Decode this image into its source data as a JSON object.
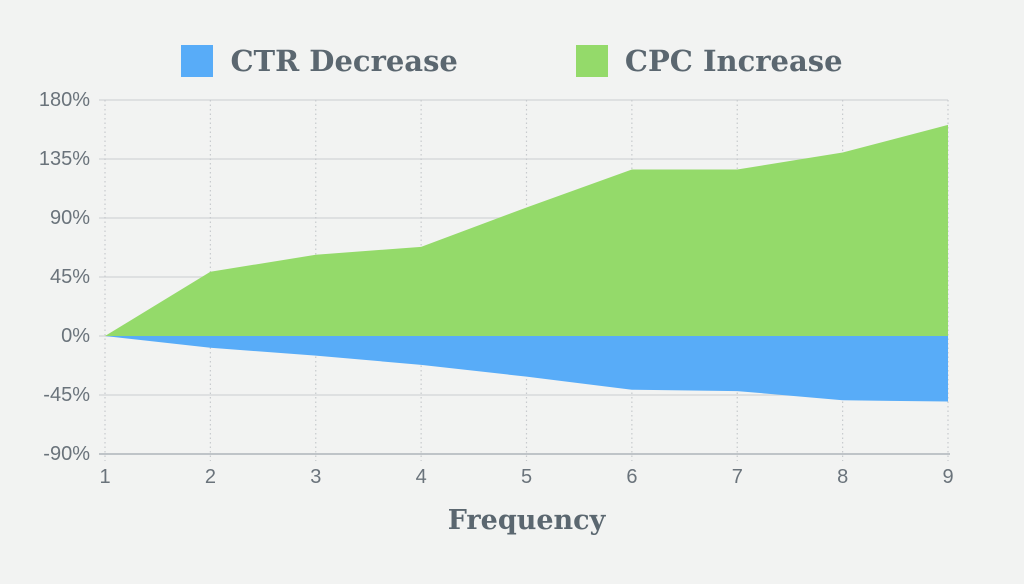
{
  "legend": [
    {
      "label": "CTR Decrease",
      "color": "#58ACF8"
    },
    {
      "label": "CPC Increase",
      "color": "#94DA6A"
    }
  ],
  "chart_data": {
    "type": "area",
    "x": [
      1,
      2,
      3,
      4,
      5,
      6,
      7,
      8,
      9
    ],
    "x_tick_labels": [
      "1",
      "2",
      "3",
      "4",
      "5",
      "6",
      "7",
      "8",
      "9"
    ],
    "series": [
      {
        "name": "CTR Decrease",
        "color": "#58ACF8",
        "values": [
          0,
          -9,
          -15,
          -22,
          -31,
          -41,
          -42,
          -49,
          -50
        ]
      },
      {
        "name": "CPC Increase",
        "color": "#94DA6A",
        "values": [
          0,
          49,
          62,
          68,
          98,
          127,
          127,
          140,
          161
        ]
      }
    ],
    "xlabel": "Frequency",
    "ylabel": "",
    "ylim": [
      -90,
      180
    ],
    "y_tick_values": [
      180,
      135,
      90,
      45,
      0,
      -45,
      -90
    ],
    "y_tick_labels": [
      "180%",
      "135%",
      "90%",
      "45%",
      "0%",
      "-45%",
      "-90%"
    ],
    "grid": true,
    "legend_position": "top",
    "colors": {
      "background": "#F2F3F2",
      "gridline": "#D7DADB",
      "gridline_dotted": "#C7CACD",
      "axis_line": "#AEB4B9",
      "tick_text": "#6A737B",
      "title_text": "#5B6770"
    }
  }
}
